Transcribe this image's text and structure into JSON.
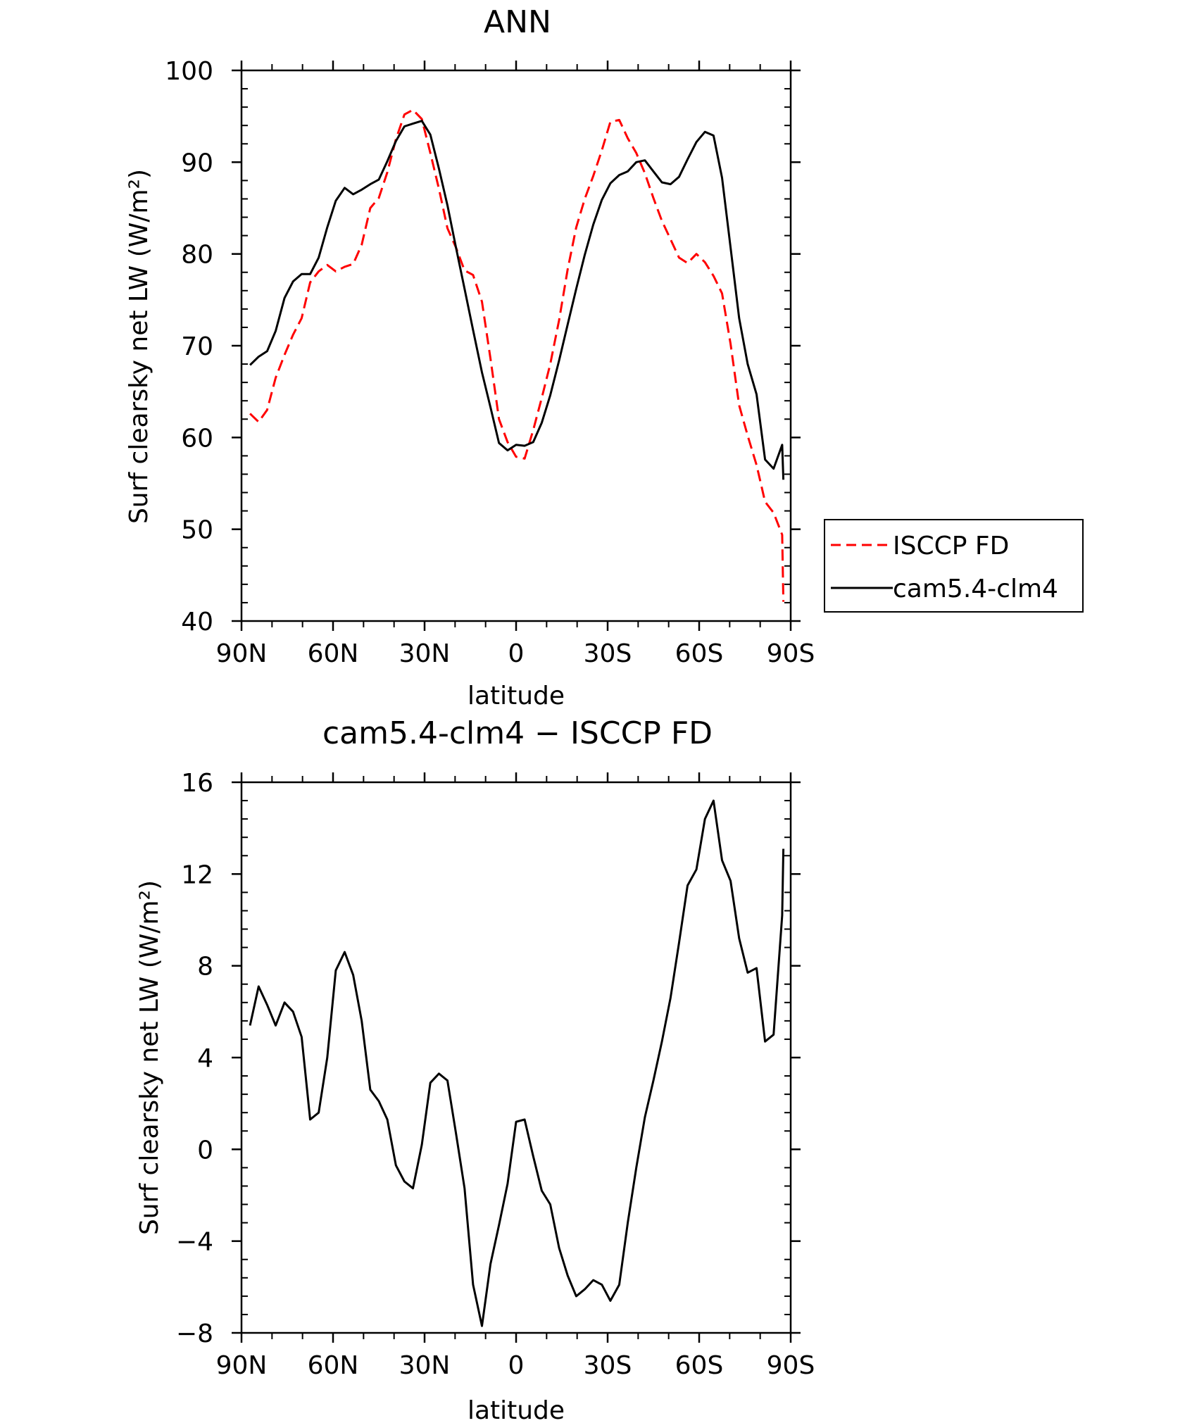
{
  "chart_data": [
    {
      "type": "line",
      "title": "ANN",
      "xlabel": "latitude",
      "ylabel": "Surf clearsky net LW (W/m²)",
      "xlim": [
        90,
        -90
      ],
      "ylim": [
        40,
        100
      ],
      "x_tick_values": [
        90,
        60,
        30,
        0,
        -30,
        -60,
        -90
      ],
      "x_tick_labels": [
        "90N",
        "60N",
        "30N",
        "0",
        "30S",
        "60S",
        "90S"
      ],
      "y_tick_values": [
        40,
        50,
        60,
        70,
        80,
        90,
        100
      ],
      "y_tick_labels": [
        "40",
        "50",
        "60",
        "70",
        "80",
        "90",
        "100"
      ],
      "legend_position": "right",
      "series": [
        {
          "name": "ISCCP FD",
          "color": "#ff0000",
          "dash": "dashed",
          "x": [
            87.2,
            84.4,
            81.6,
            78.8,
            75.9,
            73.1,
            70.3,
            67.5,
            64.7,
            61.9,
            59.1,
            56.2,
            53.4,
            50.6,
            47.8,
            45.0,
            42.2,
            39.4,
            36.6,
            33.8,
            30.9,
            28.1,
            25.3,
            22.5,
            19.7,
            16.9,
            14.1,
            11.2,
            8.4,
            5.6,
            2.8,
            0.0,
            -2.8,
            -5.6,
            -8.4,
            -11.2,
            -14.1,
            -16.9,
            -19.7,
            -22.5,
            -25.3,
            -28.1,
            -30.9,
            -33.8,
            -36.6,
            -39.4,
            -42.2,
            -45.0,
            -47.8,
            -50.6,
            -53.4,
            -56.2,
            -59.1,
            -61.9,
            -64.7,
            -67.5,
            -70.3,
            -73.1,
            -75.9,
            -78.8,
            -81.6,
            -84.4,
            -87.2
          ],
          "y": [
            62.6,
            61.7,
            63.0,
            66.5,
            69.0,
            71.2,
            73.0,
            76.9,
            78.1,
            78.8,
            78.1,
            78.6,
            78.9,
            81.0,
            85.0,
            86.1,
            88.9,
            92.5,
            95.2,
            95.7,
            94.7,
            91.0,
            87.1,
            82.8,
            80.7,
            78.2,
            77.7,
            74.8,
            68.6,
            62.0,
            59.5,
            57.9,
            57.7,
            60.8,
            64.3,
            68.0,
            72.8,
            78.3,
            82.9,
            86.0,
            88.5,
            91.3,
            94.4,
            94.6,
            92.6,
            91.0,
            88.8,
            86.1,
            83.6,
            81.6,
            79.6,
            79.0,
            80.0,
            79.1,
            77.6,
            75.7,
            70.2,
            63.5,
            60.2,
            57.0,
            53.0,
            51.8,
            49.4
          ],
          "y_last": 42.1
        },
        {
          "name": "cam5.4-clm4",
          "color": "#000000",
          "dash": "solid",
          "x": [
            87.2,
            84.4,
            81.6,
            78.8,
            75.9,
            73.1,
            70.3,
            67.5,
            64.7,
            61.9,
            59.1,
            56.2,
            53.4,
            50.6,
            47.8,
            45.0,
            42.2,
            39.4,
            36.6,
            33.8,
            30.9,
            28.1,
            25.3,
            22.5,
            19.7,
            16.9,
            14.1,
            11.2,
            8.4,
            5.6,
            2.8,
            0.0,
            -2.8,
            -5.6,
            -8.4,
            -11.2,
            -14.1,
            -16.9,
            -19.7,
            -22.5,
            -25.3,
            -28.1,
            -30.9,
            -33.8,
            -36.6,
            -39.4,
            -42.2,
            -45.0,
            -47.8,
            -50.6,
            -53.4,
            -56.2,
            -59.1,
            -61.9,
            -64.7,
            -67.5,
            -70.3,
            -73.1,
            -75.9,
            -78.8,
            -81.6,
            -84.4,
            -87.2
          ],
          "y": [
            67.9,
            68.8,
            69.4,
            71.6,
            75.2,
            77.0,
            77.8,
            77.8,
            79.6,
            82.9,
            85.8,
            87.2,
            86.5,
            87.0,
            87.6,
            88.1,
            90.1,
            92.3,
            93.9,
            94.2,
            94.5,
            93.0,
            89.3,
            85.3,
            80.7,
            76.2,
            71.7,
            67.1,
            63.3,
            59.4,
            58.6,
            59.2,
            59.1,
            59.5,
            61.6,
            64.6,
            68.4,
            72.3,
            76.2,
            79.9,
            83.2,
            85.9,
            87.7,
            88.6,
            89.0,
            90.0,
            90.2,
            89.0,
            87.8,
            87.6,
            88.4,
            90.3,
            92.2,
            93.3,
            92.9,
            88.3,
            80.7,
            73.0,
            68.0,
            64.7,
            57.6,
            56.6,
            59.2
          ],
          "y_last": 55.4
        }
      ]
    },
    {
      "type": "line",
      "title": "cam5.4-clm4 − ISCCP FD",
      "xlabel": "latitude",
      "ylabel": "Surf clearsky net LW (W/m²)",
      "xlim": [
        90,
        -90
      ],
      "ylim": [
        -8,
        16
      ],
      "x_tick_values": [
        90,
        60,
        30,
        0,
        -30,
        -60,
        -90
      ],
      "x_tick_labels": [
        "90N",
        "60N",
        "30N",
        "0",
        "30S",
        "60S",
        "90S"
      ],
      "y_tick_values": [
        -8,
        -4,
        0,
        4,
        8,
        12,
        16
      ],
      "y_tick_labels": [
        "−8",
        "−4",
        "0",
        "4",
        "8",
        "12",
        "16"
      ],
      "series": [
        {
          "color": "#000000",
          "dash": "solid",
          "x": [
            87.2,
            84.4,
            81.6,
            78.8,
            75.9,
            73.1,
            70.3,
            67.5,
            64.7,
            61.9,
            59.1,
            56.2,
            53.4,
            50.6,
            47.8,
            45.0,
            42.2,
            39.4,
            36.6,
            33.8,
            30.9,
            28.1,
            25.3,
            22.5,
            19.7,
            16.9,
            14.1,
            11.2,
            8.4,
            5.6,
            2.8,
            0.0,
            -2.8,
            -5.6,
            -8.4,
            -11.2,
            -14.1,
            -16.9,
            -19.7,
            -22.5,
            -25.3,
            -28.1,
            -30.9,
            -33.8,
            -36.6,
            -39.4,
            -42.2,
            -45.0,
            -47.8,
            -50.6,
            -53.4,
            -56.2,
            -59.1,
            -61.9,
            -64.7,
            -67.5,
            -70.3,
            -73.1,
            -75.9,
            -78.8,
            -81.6,
            -84.4,
            -87.2
          ],
          "y": [
            5.4,
            7.1,
            6.3,
            5.4,
            6.4,
            6.0,
            4.9,
            1.3,
            1.6,
            4.0,
            7.8,
            8.6,
            7.6,
            5.6,
            2.6,
            2.1,
            1.3,
            -0.7,
            -1.4,
            -1.7,
            0.2,
            2.9,
            3.3,
            3.0,
            0.7,
            -1.7,
            -5.9,
            -7.7,
            -5.0,
            -3.3,
            -1.5,
            1.2,
            1.3,
            -0.3,
            -1.8,
            -2.4,
            -4.3,
            -5.5,
            -6.4,
            -6.1,
            -5.7,
            -5.9,
            -6.6,
            -5.9,
            -3.2,
            -0.8,
            1.4,
            3.0,
            4.7,
            6.6,
            9.0,
            11.5,
            12.2,
            14.4,
            15.2,
            12.6,
            11.7,
            9.2,
            7.7,
            7.9,
            4.7,
            5.0,
            10.2
          ],
          "y_last": 13.1
        }
      ]
    }
  ]
}
